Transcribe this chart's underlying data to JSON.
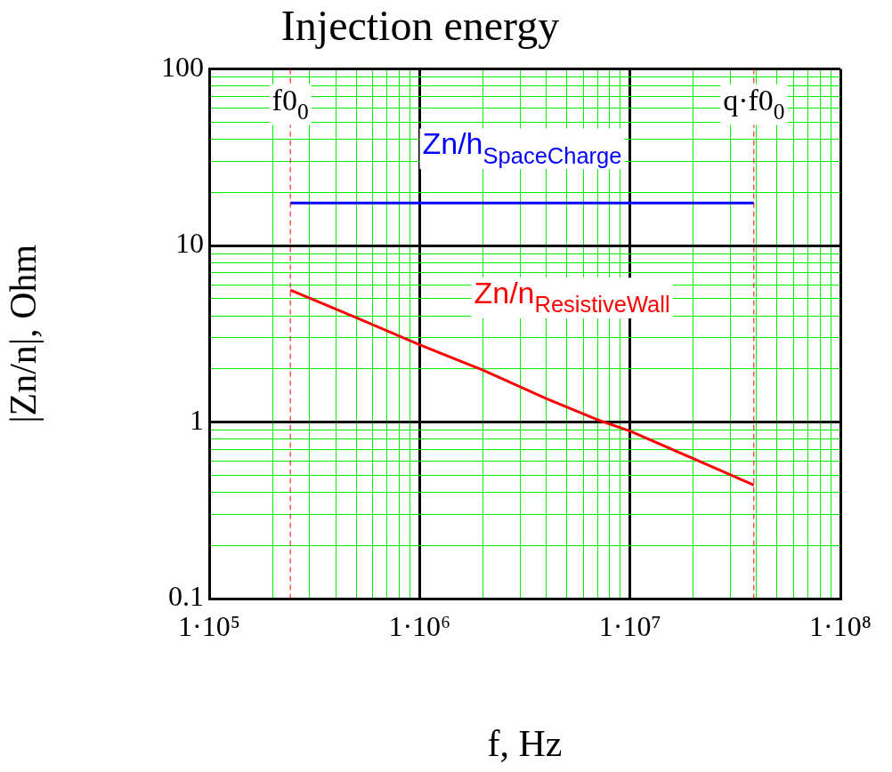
{
  "chart_data": {
    "type": "line",
    "title": "Injection energy",
    "xlabel": "f, Hz",
    "ylabel": "|Zn/n|, Ohm",
    "log": "xy",
    "grid": true,
    "legend": false,
    "marker": "none",
    "line_style": "solid",
    "xlim": [
      100000,
      100000000
    ],
    "xticks": [
      {
        "value": 100000,
        "label": "1·10⁵"
      },
      {
        "value": 200000,
        "label": null
      },
      {
        "value": 300000,
        "label": null
      },
      {
        "value": 400000,
        "label": null
      },
      {
        "value": 500000,
        "label": null
      },
      {
        "value": 600000,
        "label": null
      },
      {
        "value": 700000,
        "label": null
      },
      {
        "value": 800000,
        "label": null
      },
      {
        "value": 900000,
        "label": null
      },
      {
        "value": 1000000,
        "label": "1·10⁶"
      },
      {
        "value": 2000000,
        "label": null
      },
      {
        "value": 3000000,
        "label": null
      },
      {
        "value": 4000000,
        "label": null
      },
      {
        "value": 5000000,
        "label": null
      },
      {
        "value": 6000000,
        "label": null
      },
      {
        "value": 7000000,
        "label": null
      },
      {
        "value": 8000000,
        "label": null
      },
      {
        "value": 9000000,
        "label": null
      },
      {
        "value": 10000000,
        "label": "1·10⁷"
      },
      {
        "value": 20000000,
        "label": null
      },
      {
        "value": 30000000,
        "label": null
      },
      {
        "value": 40000000,
        "label": null
      },
      {
        "value": 50000000,
        "label": null
      },
      {
        "value": 60000000,
        "label": null
      },
      {
        "value": 70000000,
        "label": null
      },
      {
        "value": 80000000,
        "label": null
      },
      {
        "value": 90000000,
        "label": null
      },
      {
        "value": 100000000,
        "label": "1·10⁸"
      }
    ],
    "ylim": [
      0.1,
      100
    ],
    "yticks": [
      0.1,
      {
        "value": 0.2,
        "label": null
      },
      {
        "value": 0.3,
        "label": null
      },
      {
        "value": 0.4,
        "label": null
      },
      {
        "value": 0.5,
        "label": null
      },
      {
        "value": 0.6,
        "label": null
      },
      {
        "value": 0.7,
        "label": null
      },
      {
        "value": 0.8,
        "label": null
      },
      {
        "value": 0.9,
        "label": null
      },
      1,
      {
        "value": 2,
        "label": null
      },
      {
        "value": 3,
        "label": null
      },
      {
        "value": 4,
        "label": null
      },
      {
        "value": 5,
        "label": null
      },
      {
        "value": 6,
        "label": null
      },
      {
        "value": 7,
        "label": null
      },
      {
        "value": 8,
        "label": null
      },
      {
        "value": 9,
        "label": null
      },
      10,
      {
        "value": 20,
        "label": null
      },
      {
        "value": 30,
        "label": null
      },
      {
        "value": 40,
        "label": null
      },
      {
        "value": 50,
        "label": null
      },
      {
        "value": 60,
        "label": null
      },
      {
        "value": 70,
        "label": null
      },
      {
        "value": 80,
        "label": null
      },
      {
        "value": 90,
        "label": null
      },
      100
    ],
    "series": [
      {
        "name": "Zn/h$_{SpaceCharge}$",
        "color": "#0000ff",
        "x": [
          243000,
          38800000
        ],
        "values": [
          17.4,
          17.4
        ]
      },
      {
        "name": "Zn/n$_{ResistiveWall}$",
        "color": "#ff0000",
        "x": [
          243000,
          500000,
          1000000,
          2000000,
          4000000,
          7000000,
          10000000,
          20000000,
          38800000
        ],
        "values": [
          5.6,
          3.9,
          2.74,
          1.97,
          1.36,
          1.03,
          0.89,
          0.62,
          0.44
        ]
      }
    ],
    "ref_lines": [
      {
        "axis": "x",
        "value": 243000,
        "label": "f0$_{0}$",
        "color": "#ff0000",
        "line_style": "dashed"
      },
      {
        "axis": "x",
        "value": 38800000,
        "label": "q·f0$_{0}$",
        "color": "#ff0000",
        "line_style": "dashed"
      }
    ]
  }
}
